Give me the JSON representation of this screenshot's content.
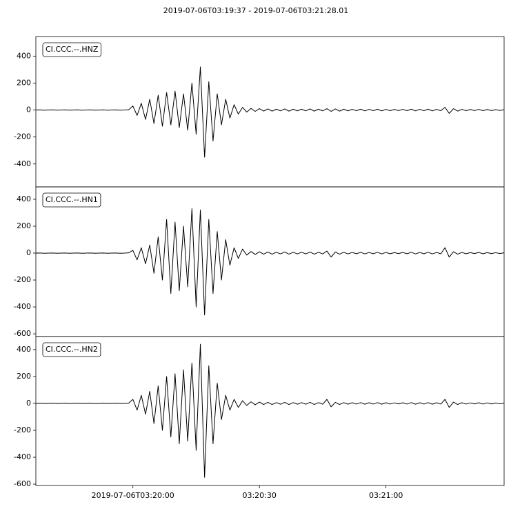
{
  "chart_data": [
    {
      "type": "line",
      "title": "2019-07-06T03:19:37  -  2019-07-06T03:21:28.01",
      "x": [
        0,
        1,
        2,
        3,
        4,
        5,
        6,
        7,
        8,
        9,
        10,
        11,
        12,
        13,
        14,
        15,
        16,
        17,
        18,
        19,
        20,
        21,
        22,
        23,
        24,
        25,
        26,
        27,
        28,
        29,
        30,
        31,
        32,
        33,
        34,
        35,
        36,
        37,
        38,
        39,
        40,
        41,
        42,
        43,
        44,
        45,
        46,
        47,
        48,
        49,
        50,
        51,
        52,
        53,
        54,
        55,
        56,
        57,
        58,
        59,
        60,
        61,
        62,
        63,
        64,
        65,
        66,
        67,
        68,
        69,
        70,
        71,
        72,
        73,
        74,
        75,
        76,
        77,
        78,
        79,
        80,
        81,
        82,
        83,
        84,
        85,
        86,
        87,
        88,
        89,
        90,
        91,
        92,
        93,
        94,
        95,
        96,
        97,
        98,
        99,
        100,
        101,
        102,
        103,
        104,
        105,
        106,
        107,
        108,
        109,
        110,
        111
      ],
      "series": [
        {
          "name": "CI.CCC.--.HNZ",
          "color": "#000000",
          "values": [
            0,
            1,
            -1,
            0,
            1,
            -1,
            0,
            1,
            -1,
            0,
            1,
            -1,
            0,
            1,
            -1,
            0,
            1,
            -1,
            0,
            1,
            -1,
            0,
            2,
            30,
            -40,
            50,
            -70,
            80,
            -100,
            110,
            -120,
            130,
            -110,
            140,
            -130,
            120,
            -150,
            200,
            -180,
            320,
            -350,
            210,
            -230,
            120,
            -110,
            80,
            -60,
            40,
            -30,
            20,
            -15,
            12,
            -10,
            10,
            -8,
            8,
            -8,
            6,
            -6,
            8,
            -8,
            6,
            -6,
            6,
            -6,
            8,
            -8,
            6,
            -6,
            10,
            -10,
            8,
            -8,
            6,
            -6,
            5,
            -5,
            6,
            -6,
            5,
            -5,
            6,
            -6,
            5,
            -5,
            4,
            -4,
            5,
            -5,
            6,
            -6,
            5,
            -5,
            6,
            -6,
            5,
            -5,
            20,
            -25,
            10,
            -8,
            5,
            -5,
            4,
            -4,
            5,
            -5,
            4,
            -4,
            3,
            -3,
            2
          ]
        }
      ],
      "xlim": [
        0,
        111.01
      ],
      "ylim": [
        -570,
        545
      ],
      "yticks": [
        -400,
        -200,
        0,
        200,
        400
      ]
    },
    {
      "type": "line",
      "x": [
        0,
        1,
        2,
        3,
        4,
        5,
        6,
        7,
        8,
        9,
        10,
        11,
        12,
        13,
        14,
        15,
        16,
        17,
        18,
        19,
        20,
        21,
        22,
        23,
        24,
        25,
        26,
        27,
        28,
        29,
        30,
        31,
        32,
        33,
        34,
        35,
        36,
        37,
        38,
        39,
        40,
        41,
        42,
        43,
        44,
        45,
        46,
        47,
        48,
        49,
        50,
        51,
        52,
        53,
        54,
        55,
        56,
        57,
        58,
        59,
        60,
        61,
        62,
        63,
        64,
        65,
        66,
        67,
        68,
        69,
        70,
        71,
        72,
        73,
        74,
        75,
        76,
        77,
        78,
        79,
        80,
        81,
        82,
        83,
        84,
        85,
        86,
        87,
        88,
        89,
        90,
        91,
        92,
        93,
        94,
        95,
        96,
        97,
        98,
        99,
        100,
        101,
        102,
        103,
        104,
        105,
        106,
        107,
        108,
        109,
        110,
        111
      ],
      "series": [
        {
          "name": "CI.CCC.--.HN1",
          "color": "#000000",
          "values": [
            0,
            1,
            -1,
            0,
            1,
            -1,
            0,
            1,
            -1,
            0,
            1,
            -1,
            0,
            1,
            -1,
            0,
            1,
            -1,
            0,
            1,
            -1,
            0,
            2,
            20,
            -50,
            40,
            -80,
            60,
            -150,
            120,
            -200,
            250,
            -300,
            230,
            -280,
            200,
            -250,
            330,
            -400,
            320,
            -460,
            250,
            -300,
            160,
            -200,
            100,
            -90,
            40,
            -40,
            30,
            -15,
            12,
            -10,
            10,
            -8,
            8,
            -8,
            6,
            -6,
            8,
            -8,
            6,
            -6,
            6,
            -6,
            8,
            -8,
            6,
            -6,
            15,
            -30,
            8,
            -8,
            6,
            -6,
            5,
            -5,
            6,
            -6,
            5,
            -5,
            6,
            -6,
            5,
            -5,
            4,
            -4,
            5,
            -5,
            6,
            -6,
            5,
            -5,
            6,
            -6,
            5,
            -5,
            40,
            -30,
            10,
            -8,
            5,
            -5,
            4,
            -4,
            5,
            -5,
            4,
            -4,
            3,
            -3,
            2
          ]
        }
      ],
      "xlim": [
        0,
        111.01
      ],
      "ylim": [
        -620,
        492
      ],
      "yticks": [
        -600,
        -400,
        -200,
        0,
        200,
        400
      ]
    },
    {
      "type": "line",
      "x": [
        0,
        1,
        2,
        3,
        4,
        5,
        6,
        7,
        8,
        9,
        10,
        11,
        12,
        13,
        14,
        15,
        16,
        17,
        18,
        19,
        20,
        21,
        22,
        23,
        24,
        25,
        26,
        27,
        28,
        29,
        30,
        31,
        32,
        33,
        34,
        35,
        36,
        37,
        38,
        39,
        40,
        41,
        42,
        43,
        44,
        45,
        46,
        47,
        48,
        49,
        50,
        51,
        52,
        53,
        54,
        55,
        56,
        57,
        58,
        59,
        60,
        61,
        62,
        63,
        64,
        65,
        66,
        67,
        68,
        69,
        70,
        71,
        72,
        73,
        74,
        75,
        76,
        77,
        78,
        79,
        80,
        81,
        82,
        83,
        84,
        85,
        86,
        87,
        88,
        89,
        90,
        91,
        92,
        93,
        94,
        95,
        96,
        97,
        98,
        99,
        100,
        101,
        102,
        103,
        104,
        105,
        106,
        107,
        108,
        109,
        110,
        111
      ],
      "series": [
        {
          "name": "CI.CCC.--.HN2",
          "color": "#000000",
          "values": [
            0,
            1,
            -1,
            0,
            1,
            -1,
            0,
            1,
            -1,
            0,
            1,
            -1,
            0,
            1,
            -1,
            0,
            1,
            -1,
            0,
            1,
            -1,
            0,
            2,
            30,
            -50,
            60,
            -80,
            90,
            -150,
            130,
            -200,
            200,
            -250,
            220,
            -300,
            250,
            -280,
            300,
            -350,
            440,
            -550,
            280,
            -300,
            150,
            -120,
            60,
            -50,
            30,
            -30,
            20,
            -15,
            12,
            -10,
            10,
            -8,
            8,
            -8,
            6,
            -6,
            8,
            -8,
            6,
            -6,
            6,
            -6,
            8,
            -8,
            6,
            -6,
            30,
            -25,
            8,
            -8,
            6,
            -6,
            5,
            -5,
            6,
            -6,
            5,
            -5,
            6,
            -6,
            5,
            -5,
            4,
            -4,
            5,
            -5,
            6,
            -6,
            5,
            -5,
            6,
            -6,
            5,
            -5,
            30,
            -30,
            10,
            -8,
            5,
            -5,
            4,
            -4,
            5,
            -5,
            4,
            -4,
            3,
            -3,
            2
          ]
        }
      ],
      "xlim": [
        0,
        111.01
      ],
      "ylim": [
        -610,
        497
      ],
      "yticks": [
        -600,
        -400,
        -200,
        0,
        200,
        400
      ],
      "xticks": [
        {
          "value": 23,
          "label": "2019-07-06T03:20:00"
        },
        {
          "value": 53,
          "label": "03:20:30"
        },
        {
          "value": 83,
          "label": "03:21:00"
        }
      ]
    }
  ]
}
